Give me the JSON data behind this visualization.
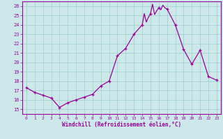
{
  "x": [
    0,
    1,
    2,
    3,
    4,
    5,
    6,
    7,
    8,
    9,
    10,
    11,
    12,
    13,
    14,
    14.25,
    14.5,
    14.75,
    15,
    15.25,
    15.5,
    15.75,
    16,
    16.25,
    16.5,
    16.75,
    17,
    18,
    19,
    20,
    21,
    22,
    23
  ],
  "y": [
    17.3,
    16.8,
    16.5,
    16.2,
    15.2,
    15.7,
    16.0,
    16.3,
    16.6,
    17.5,
    18.0,
    20.7,
    21.5,
    23.0,
    24.0,
    25.2,
    24.3,
    24.8,
    25.2,
    26.2,
    25.1,
    25.5,
    25.8,
    25.6,
    26.1,
    25.8,
    25.7,
    24.0,
    21.4,
    19.8,
    21.3,
    18.5,
    18.1
  ],
  "marker_x": [
    0,
    1,
    2,
    3,
    4,
    5,
    6,
    7,
    8,
    9,
    10,
    11,
    12,
    13,
    14,
    15,
    16,
    17,
    18,
    19,
    20,
    21,
    22,
    23
  ],
  "marker_y": [
    17.3,
    16.8,
    16.5,
    16.2,
    15.2,
    15.7,
    16.0,
    16.3,
    16.6,
    17.5,
    18.0,
    20.7,
    21.5,
    23.0,
    24.0,
    25.2,
    25.8,
    25.7,
    24.0,
    21.4,
    19.8,
    21.3,
    18.5,
    18.1
  ],
  "line_color": "#990099",
  "marker_color": "#990099",
  "bg_color": "#cce8e8",
  "grid_color": "#99cccc",
  "xlabel": "Windchill (Refroidissement éolien,°C)",
  "xlim": [
    -0.5,
    23.5
  ],
  "ylim": [
    14.5,
    26.5
  ],
  "yticks": [
    15,
    16,
    17,
    18,
    19,
    20,
    21,
    22,
    23,
    24,
    25,
    26
  ],
  "xticks": [
    0,
    1,
    2,
    3,
    4,
    5,
    6,
    7,
    8,
    9,
    10,
    11,
    12,
    13,
    14,
    15,
    16,
    17,
    18,
    19,
    20,
    21,
    22,
    23
  ],
  "axis_color": "#990099",
  "font_color": "#990099"
}
